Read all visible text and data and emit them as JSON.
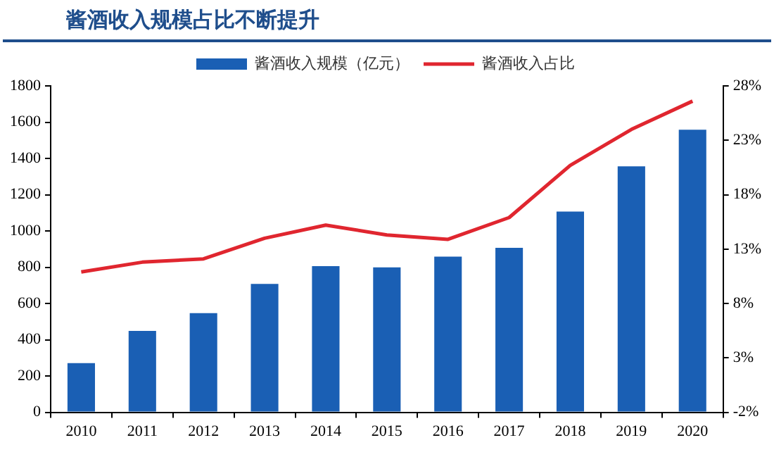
{
  "chart_data": {
    "type": "bar",
    "title": "酱酒收入规模占比不断提升",
    "categories": [
      "2010",
      "2011",
      "2012",
      "2013",
      "2014",
      "2015",
      "2016",
      "2017",
      "2018",
      "2019",
      "2020"
    ],
    "series": [
      {
        "name": "酱酒收入规模（亿元）",
        "color": "#1a5fb4",
        "values": [
          271,
          449,
          547,
          708,
          806,
          799,
          858,
          907,
          1107,
          1356,
          1558
        ]
      },
      {
        "name": "酱酒收入占比",
        "type": "line",
        "axis": "y2",
        "color": "#e0262f",
        "values": [
          10.9,
          11.8,
          12.1,
          14.0,
          15.2,
          14.3,
          13.9,
          15.9,
          20.7,
          24.0,
          26.6
        ]
      }
    ],
    "ylim": [
      0,
      1800
    ],
    "yticks": [
      0,
      200,
      400,
      600,
      800,
      1000,
      1200,
      1400,
      1600,
      1800
    ],
    "y2lim": [
      -2,
      28
    ],
    "y2ticks": [
      {
        "value": -2,
        "label": "-2%"
      },
      {
        "value": 3,
        "label": "3%"
      },
      {
        "value": 8,
        "label": "8%"
      },
      {
        "value": 13,
        "label": "13%"
      },
      {
        "value": 18,
        "label": "18%"
      },
      {
        "value": 23,
        "label": "23%"
      },
      {
        "value": 28,
        "label": "28%"
      }
    ],
    "legend": "top",
    "grid": false,
    "marker": "none"
  }
}
